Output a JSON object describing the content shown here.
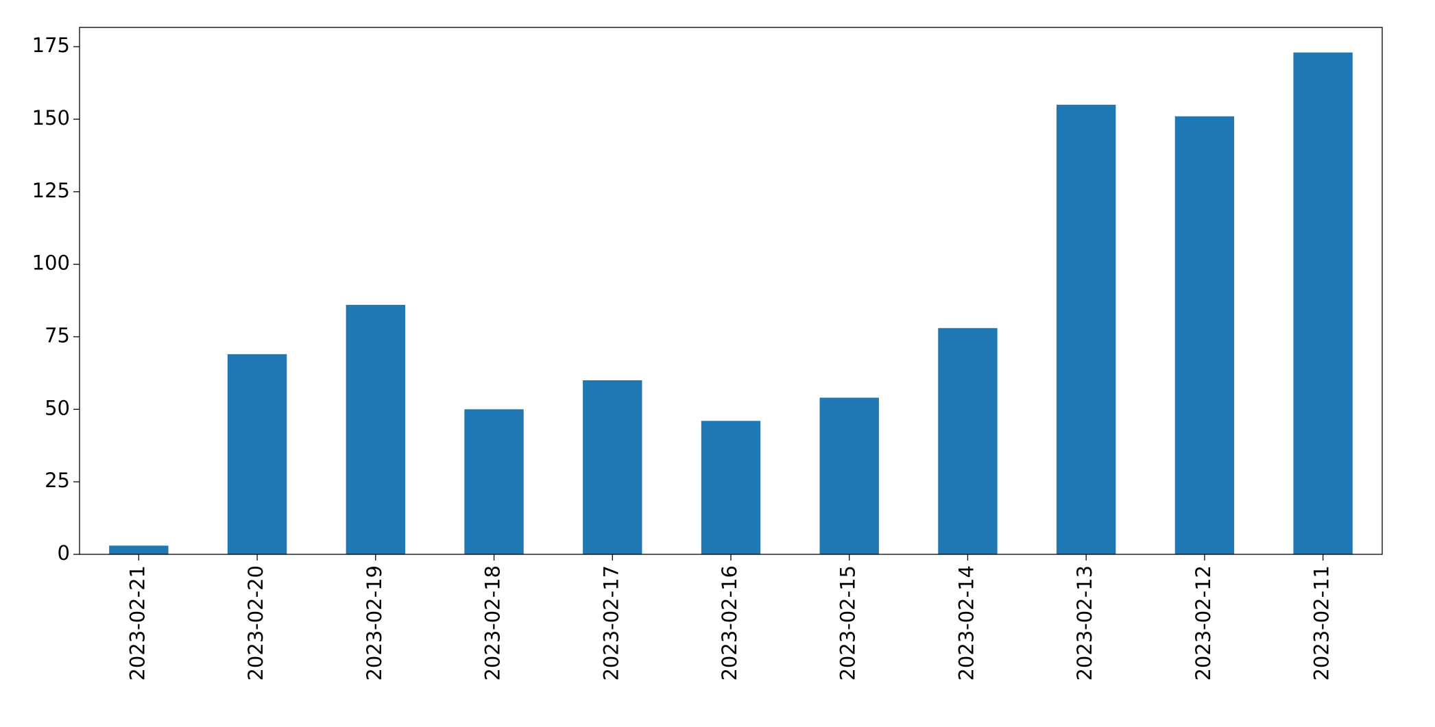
{
  "chart_data": {
    "type": "bar",
    "categories": [
      "2023-02-21",
      "2023-02-20",
      "2023-02-19",
      "2023-02-18",
      "2023-02-17",
      "2023-02-16",
      "2023-02-15",
      "2023-02-14",
      "2023-02-13",
      "2023-02-12",
      "2023-02-11"
    ],
    "values": [
      3,
      69,
      86,
      50,
      60,
      46,
      54,
      78,
      155,
      151,
      173
    ],
    "color": "#1f77b4",
    "ylim": [
      0,
      181.65
    ],
    "yticks": [
      0,
      25,
      50,
      75,
      100,
      125,
      150,
      175
    ],
    "grid": false
  }
}
